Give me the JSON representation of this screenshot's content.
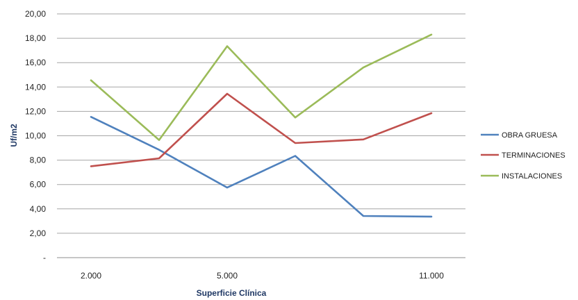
{
  "chart_data": {
    "type": "line",
    "title": "",
    "xlabel": "Superficie Clínica",
    "ylabel": "Uf/m2",
    "ylim": [
      0,
      20
    ],
    "y_ticks": [
      "-",
      "2,00",
      "4,00",
      "6,00",
      "8,00",
      "10,00",
      "12,00",
      "14,00",
      "16,00",
      "18,00",
      "20,00"
    ],
    "x_tick_labels": [
      "2.000",
      "5.000",
      "11.000"
    ],
    "x_tick_positions": [
      0,
      2,
      5
    ],
    "point_count": 6,
    "grid": true,
    "legend_position": "right",
    "series": [
      {
        "name": "OBRA GRUESA",
        "color": "#4f81bd",
        "values": [
          11.55,
          8.85,
          5.75,
          8.35,
          3.42,
          3.37
        ]
      },
      {
        "name": "TERMINACIONES",
        "color": "#c0504d",
        "values": [
          7.5,
          8.15,
          13.45,
          9.4,
          9.7,
          11.85
        ]
      },
      {
        "name": "INSTALACIONES",
        "color": "#9bbb59",
        "values": [
          14.55,
          9.65,
          17.35,
          11.5,
          15.6,
          18.3
        ]
      }
    ]
  }
}
